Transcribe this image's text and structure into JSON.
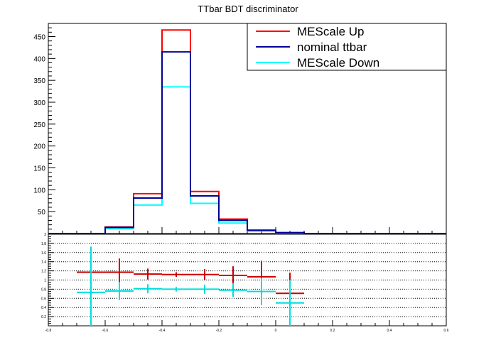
{
  "chart_data": [
    {
      "type": "step-histogram",
      "title": "TTbar BDT discriminator",
      "xlim": [
        -0.8,
        0.6
      ],
      "ylim": [
        0,
        480
      ],
      "ytick_labels": [
        "50",
        "100",
        "150",
        "200",
        "250",
        "300",
        "350",
        "400",
        "450"
      ],
      "bin_edges": [
        -0.8,
        -0.7,
        -0.6,
        -0.5,
        -0.4,
        -0.3,
        -0.2,
        -0.1,
        0.0,
        0.1,
        0.2,
        0.3,
        0.4,
        0.5,
        0.6
      ],
      "series": [
        {
          "name": "MEScale Up",
          "color": "#ff0000",
          "values": [
            0,
            0,
            15,
            91,
            465,
            96,
            33,
            8,
            2,
            0,
            0,
            0,
            0,
            0
          ]
        },
        {
          "name": "nominal ttbar",
          "color": "#000099",
          "values": [
            0,
            0,
            14,
            81,
            415,
            86,
            30,
            7,
            2,
            0,
            0,
            0,
            0,
            0
          ]
        },
        {
          "name": "MEScale Down",
          "color": "#00ffff",
          "values": [
            0,
            0,
            11,
            65,
            335,
            69,
            24,
            6,
            1,
            0,
            0,
            0,
            0,
            0
          ]
        }
      ],
      "legend": {
        "placement": "top-right",
        "entries": [
          "MEScale Up",
          "nominal ttbar",
          "MEScale Down"
        ]
      },
      "grid": false
    },
    {
      "type": "ratio-errorbars",
      "xlim": [
        -0.8,
        0.6
      ],
      "ylim": [
        0,
        2
      ],
      "xtick_labels": [
        "-0.8",
        "-0.6",
        "-0.4",
        "-0.2",
        "0",
        "0.2",
        "0.4",
        "0.6"
      ],
      "ytick_labels": [
        "0.2",
        "0.4",
        "0.6",
        "0.8",
        "1",
        "1.2",
        "1.4",
        "1.6",
        "1.8",
        "2"
      ],
      "grid": "horizontal dotted",
      "series": [
        {
          "name": "MEScale Up",
          "color": "#cc0000",
          "points": [
            {
              "x": -0.65,
              "y": 1.17,
              "xerr": 0.05,
              "yerr": 0.0
            },
            {
              "x": -0.55,
              "y": 1.17,
              "xerr": 0.05,
              "yerr": 0.3
            },
            {
              "x": -0.45,
              "y": 1.13,
              "xerr": 0.05,
              "yerr": 0.12
            },
            {
              "x": -0.35,
              "y": 1.12,
              "xerr": 0.05,
              "yerr": 0.05
            },
            {
              "x": -0.25,
              "y": 1.12,
              "xerr": 0.05,
              "yerr": 0.12
            },
            {
              "x": -0.15,
              "y": 1.1,
              "xerr": 0.05,
              "yerr": 0.2
            },
            {
              "x": -0.05,
              "y": 1.07,
              "xerr": 0.05,
              "yerr": 0.35
            },
            {
              "x": 0.05,
              "y": 0.71,
              "xerr": 0.05,
              "yerr": 0.45
            }
          ]
        },
        {
          "name": "MEScale Down",
          "color": "#00dddd",
          "points": [
            {
              "x": -0.65,
              "y": 0.73,
              "xerr": 0.05,
              "yerr": 1.0
            },
            {
              "x": -0.55,
              "y": 0.76,
              "xerr": 0.05,
              "yerr": 0.2
            },
            {
              "x": -0.45,
              "y": 0.81,
              "xerr": 0.05,
              "yerr": 0.1
            },
            {
              "x": -0.35,
              "y": 0.8,
              "xerr": 0.05,
              "yerr": 0.05
            },
            {
              "x": -0.25,
              "y": 0.8,
              "xerr": 0.05,
              "yerr": 0.1
            },
            {
              "x": -0.15,
              "y": 0.78,
              "xerr": 0.05,
              "yerr": 0.15
            },
            {
              "x": -0.05,
              "y": 0.75,
              "xerr": 0.05,
              "yerr": 0.3
            },
            {
              "x": 0.05,
              "y": 0.5,
              "xerr": 0.05,
              "yerr": 0.5
            }
          ]
        }
      ]
    }
  ]
}
